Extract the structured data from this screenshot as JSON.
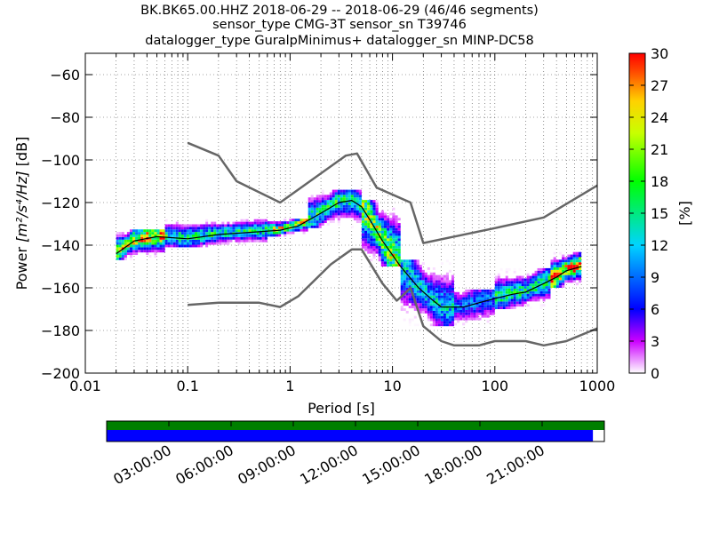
{
  "chart_data": {
    "type": "heatmap",
    "title_lines": [
      "BK.BK65.00.HHZ   2018-06-29 -- 2018-06-29  (46/46 segments)",
      "sensor_type CMG-3T sensor_sn T39746",
      "datalogger_type GuralpMinimus+ datalogger_sn MINP-DC58"
    ],
    "xlabel": "Period [s]",
    "ylabel_main": "Power ",
    "ylabel_math": "[m²/s⁴/Hz]",
    "ylabel_unit": " [dB]",
    "x_scale": "log",
    "xlim": [
      0.01,
      1000
    ],
    "ylim": [
      -200,
      -50
    ],
    "x_ticks": [
      {
        "value": 0.01,
        "label": "0.01"
      },
      {
        "value": 0.1,
        "label": "0.1"
      },
      {
        "value": 1,
        "label": "1"
      },
      {
        "value": 10,
        "label": "10"
      },
      {
        "value": 100,
        "label": "100"
      },
      {
        "value": 1000,
        "label": "1000"
      }
    ],
    "y_ticks": [
      {
        "value": -60,
        "label": "−60"
      },
      {
        "value": -80,
        "label": "−80"
      },
      {
        "value": -100,
        "label": "−100"
      },
      {
        "value": -120,
        "label": "−120"
      },
      {
        "value": -140,
        "label": "−140"
      },
      {
        "value": -160,
        "label": "−160"
      },
      {
        "value": -180,
        "label": "−180"
      },
      {
        "value": -200,
        "label": "−200"
      }
    ],
    "grid": true,
    "colorbar": {
      "label": "[%]",
      "range": [
        0,
        30
      ],
      "ticks": [
        {
          "value": 0,
          "label": "0"
        },
        {
          "value": 3,
          "label": "3"
        },
        {
          "value": 6,
          "label": "6"
        },
        {
          "value": 9,
          "label": "9"
        },
        {
          "value": 12,
          "label": "12"
        },
        {
          "value": 15,
          "label": "15"
        },
        {
          "value": 18,
          "label": "18"
        },
        {
          "value": 21,
          "label": "21"
        },
        {
          "value": 24,
          "label": "24"
        },
        {
          "value": 27,
          "label": "27"
        },
        {
          "value": 30,
          "label": "30"
        }
      ]
    },
    "series": [
      {
        "type": "line",
        "color": "#666666",
        "points": [
          [
            0.1,
            -92
          ],
          [
            0.2,
            -98
          ],
          [
            0.3,
            -110
          ],
          [
            0.8,
            -120
          ],
          [
            3.5,
            -98
          ],
          [
            4.5,
            -97
          ],
          [
            7,
            -113
          ],
          [
            15,
            -120
          ],
          [
            20,
            -139
          ],
          [
            100,
            -132
          ],
          [
            300,
            -127
          ],
          [
            1000,
            -112
          ]
        ]
      },
      {
        "type": "line",
        "color": "#666666",
        "points": [
          [
            0.1,
            -168
          ],
          [
            0.2,
            -167
          ],
          [
            0.5,
            -167
          ],
          [
            0.8,
            -169
          ],
          [
            1.2,
            -164
          ],
          [
            2.5,
            -149
          ],
          [
            4,
            -142
          ],
          [
            5,
            -142
          ],
          [
            8,
            -158
          ],
          [
            11,
            -166
          ],
          [
            13,
            -163
          ],
          [
            15,
            -160
          ],
          [
            20,
            -178
          ],
          [
            30,
            -185
          ],
          [
            40,
            -187
          ],
          [
            70,
            -187
          ],
          [
            100,
            -185
          ],
          [
            200,
            -185
          ],
          [
            300,
            -187
          ],
          [
            500,
            -185
          ],
          [
            1000,
            -179
          ]
        ]
      },
      {
        "type": "line",
        "color": "#000000",
        "points": [
          [
            0.02,
            -144
          ],
          [
            0.03,
            -138
          ],
          [
            0.05,
            -136
          ],
          [
            0.1,
            -137
          ],
          [
            0.2,
            -135
          ],
          [
            0.4,
            -134
          ],
          [
            0.8,
            -133
          ],
          [
            1.2,
            -131
          ],
          [
            2,
            -125
          ],
          [
            3,
            -120
          ],
          [
            4,
            -119
          ],
          [
            5,
            -122
          ],
          [
            6,
            -128
          ],
          [
            8,
            -138
          ],
          [
            12,
            -150
          ],
          [
            18,
            -160
          ],
          [
            25,
            -166
          ],
          [
            30,
            -169
          ],
          [
            50,
            -169
          ],
          [
            70,
            -167
          ],
          [
            100,
            -165
          ],
          [
            150,
            -163
          ],
          [
            200,
            -162
          ],
          [
            300,
            -158
          ],
          [
            400,
            -155
          ],
          [
            500,
            -152
          ],
          [
            700,
            -150
          ]
        ]
      }
    ],
    "density_bands": [
      {
        "x": [
          0.02,
          0.06
        ],
        "y": [
          -147,
          -133
        ],
        "center_pct": 24
      },
      {
        "x": [
          0.06,
          0.6
        ],
        "y": [
          -141,
          -128
        ],
        "center_pct": 15
      },
      {
        "x": [
          0.6,
          1.5
        ],
        "y": [
          -136,
          -128
        ],
        "center_pct": 22
      },
      {
        "x": [
          1.5,
          5
        ],
        "y": [
          -132,
          -114
        ],
        "center_pct": 15
      },
      {
        "x": [
          5,
          12
        ],
        "y": [
          -150,
          -120
        ],
        "center_pct": 20
      },
      {
        "x": [
          12,
          40
        ],
        "y": [
          -178,
          -148
        ],
        "center_pct": 12
      },
      {
        "x": [
          40,
          100
        ],
        "y": [
          -180,
          -162
        ],
        "center_pct": 9
      },
      {
        "x": [
          100,
          350
        ],
        "y": [
          -170,
          -152
        ],
        "center_pct": 15
      },
      {
        "x": [
          350,
          700
        ],
        "y": [
          -160,
          -144
        ],
        "center_pct": 27
      }
    ]
  },
  "timeline": {
    "ticks": [
      {
        "frac": 0.125,
        "label": "03:00:00"
      },
      {
        "frac": 0.25,
        "label": "06:00:00"
      },
      {
        "frac": 0.375,
        "label": "09:00:00"
      },
      {
        "frac": 0.5,
        "label": "12:00:00"
      },
      {
        "frac": 0.625,
        "label": "15:00:00"
      },
      {
        "frac": 0.75,
        "label": "18:00:00"
      },
      {
        "frac": 0.875,
        "label": "21:00:00"
      }
    ],
    "coverage_green": 1.0,
    "coverage_blue": 0.977,
    "colors": {
      "green": "#007f00",
      "blue": "#0000ff"
    }
  },
  "colors": {
    "pqlx_line": "#666666",
    "mode_line": "#000000"
  }
}
